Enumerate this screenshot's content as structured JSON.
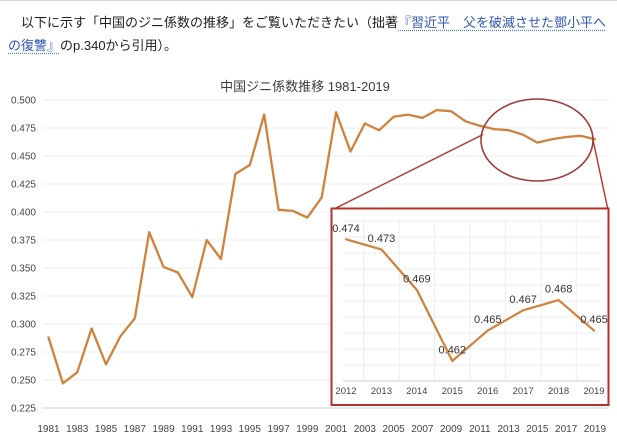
{
  "paragraph": {
    "text_before_link": "　以下に示す「中国のジニ係数の推移」をご覧いただきたい（拙著",
    "link_text": "『習近平　父を破滅させた鄧小平への復讐』",
    "text_after_link": "のp.340から引用）。"
  },
  "chart_data": [
    {
      "id": "main-gini-chart",
      "type": "line",
      "title": "中国ジニ係数推移 1981-2019",
      "x": [
        1981,
        1982,
        1983,
        1984,
        1985,
        1986,
        1987,
        1988,
        1989,
        1990,
        1991,
        1992,
        1993,
        1994,
        1995,
        1996,
        1997,
        1998,
        1999,
        2000,
        2001,
        2002,
        2003,
        2004,
        2005,
        2006,
        2007,
        2008,
        2009,
        2010,
        2011,
        2012,
        2013,
        2014,
        2015,
        2016,
        2017,
        2018,
        2019
      ],
      "values": [
        0.288,
        0.247,
        0.257,
        0.296,
        0.264,
        0.289,
        0.305,
        0.382,
        0.351,
        0.346,
        0.324,
        0.375,
        0.358,
        0.434,
        0.442,
        0.487,
        0.402,
        0.401,
        0.395,
        0.413,
        0.489,
        0.454,
        0.479,
        0.473,
        0.485,
        0.487,
        0.484,
        0.491,
        0.49,
        0.481,
        0.477,
        0.474,
        0.473,
        0.469,
        0.462,
        0.465,
        0.467,
        0.468,
        0.465
      ],
      "x_tick_labels": [
        "1981",
        "1983",
        "1985",
        "1987",
        "1989",
        "1991",
        "1993",
        "1995",
        "1997",
        "1999",
        "2001",
        "2003",
        "2005",
        "2007",
        "2009",
        "2011",
        "2013",
        "2015",
        "2017",
        "2019"
      ],
      "y_tick_labels": [
        "0.500",
        "0.475",
        "0.450",
        "0.425",
        "0.400",
        "0.375",
        "0.350",
        "0.325",
        "0.300",
        "0.275",
        "0.250",
        "0.225"
      ],
      "ylim": [
        0.225,
        0.5
      ],
      "grid": "horizontal",
      "legend": "none",
      "line_color": "#d2813c",
      "annotation": {
        "type": "ellipse-callout",
        "highlight_years": "2012-2019",
        "ellipse_color": "#9e3c38",
        "callout_color": "#b5312a"
      }
    },
    {
      "id": "inset-zoom-chart",
      "type": "line",
      "title": "",
      "x": [
        2012,
        2013,
        2014,
        2015,
        2016,
        2017,
        2018,
        2019
      ],
      "values": [
        0.474,
        0.473,
        0.469,
        0.462,
        0.465,
        0.467,
        0.468,
        0.465
      ],
      "data_labels": [
        "0.474",
        "0.473",
        "0.469",
        "0.462",
        "0.465",
        "0.467",
        "0.468",
        "0.465"
      ],
      "x_tick_labels": [
        "2012",
        "2013",
        "2014",
        "2015",
        "2016",
        "2017",
        "2018",
        "2019"
      ],
      "ylim": [
        0.458,
        0.477
      ],
      "grid": "both",
      "legend": "none",
      "line_color": "#d2813c",
      "border_color": "#b5312a",
      "label_color": "#333333"
    }
  ],
  "colors": {
    "axis_text": "#444444",
    "title_text": "#3d3d3d",
    "gridline": "#ededed",
    "axis_line": "#d2d2d2",
    "background": "#ffffff"
  }
}
